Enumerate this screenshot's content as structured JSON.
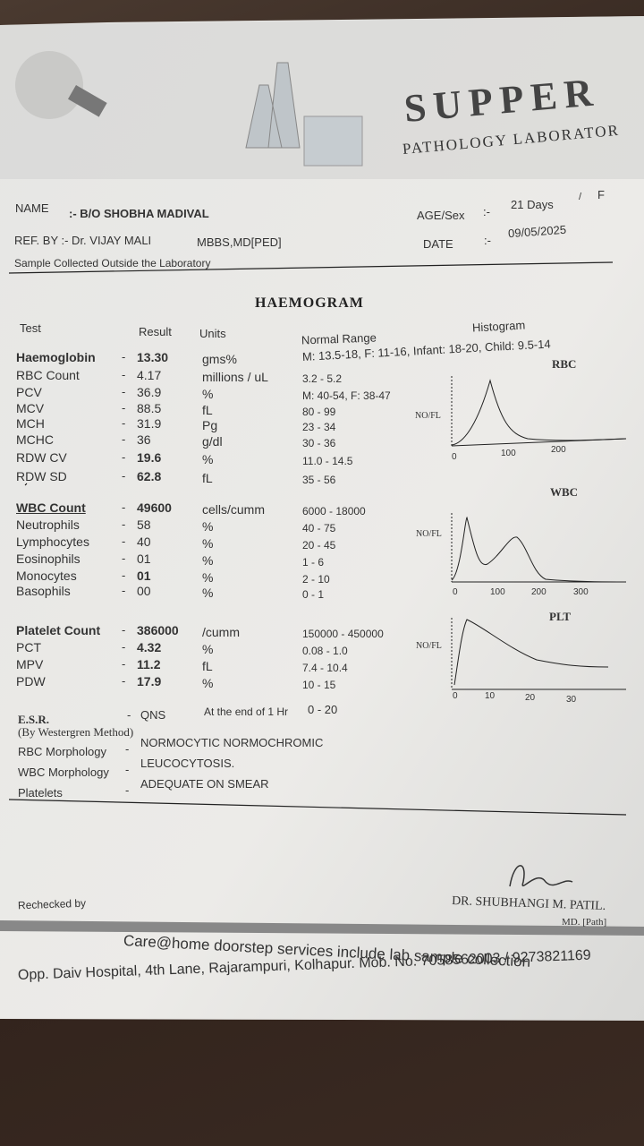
{
  "header": {
    "lab_name": "SUPPER",
    "lab_subtitle": "PATHOLOGY LABORATOR"
  },
  "patient": {
    "name_label": "NAME",
    "name": ":- B/O SHOBHA MADIVAL",
    "age_label": "AGE/Sex",
    "age_sep": ":-",
    "age": "21 Days",
    "age_slash": "/",
    "sex": "F",
    "ref": "REF. BY :- Dr. VIJAY MALI",
    "ref_degree": "MBBS,MD[PED]",
    "date_label": "DATE",
    "date_sep": ":-",
    "date": "09/05/2025",
    "sample_note": "Sample Collected Outside the Laboratory"
  },
  "report": {
    "title": "HAEMOGRAM",
    "columns": {
      "test": "Test",
      "result": "Result",
      "units": "Units",
      "range": "Normal Range",
      "histogram": "Histogram"
    },
    "rows": [
      {
        "test": "Haemoglobin",
        "dash": "-",
        "result": "13.30",
        "unit": "gms%",
        "range": "M: 13.5-18, F: 11-16, Infant: 18-20, Child: 9.5-14"
      },
      {
        "test": "RBC Count",
        "dash": "-",
        "result": "4.17",
        "unit": "millions / uL",
        "range": "3.2 - 5.2"
      },
      {
        "test": "PCV",
        "dash": "-",
        "result": "36.9",
        "unit": "%",
        "range": "M: 40-54, F: 38-47"
      },
      {
        "test": "MCV",
        "dash": "-",
        "result": "88.5",
        "unit": "fL",
        "range": "80 - 99"
      },
      {
        "test": "MCH",
        "dash": "-",
        "result": "31.9",
        "unit": "Pg",
        "range": "23 - 34"
      },
      {
        "test": "MCHC",
        "dash": "-",
        "result": "36",
        "unit": "g/dl",
        "range": "30 - 36"
      },
      {
        "test": "RDW CV",
        "dash": "-",
        "result": "19.6",
        "unit": "%",
        "range": "11.0 - 14.5"
      },
      {
        "test": "RDW SD",
        "dash": "-",
        "result": "62.8",
        "unit": "fL",
        "range": "35 - 56"
      },
      {
        "test": "WBC Count",
        "dash": "-",
        "result": "49600",
        "unit": "cells/cumm",
        "range": "6000 - 18000"
      },
      {
        "test": "Neutrophils",
        "dash": "-",
        "result": "58",
        "unit": "%",
        "range": "40 - 75"
      },
      {
        "test": "Lymphocytes",
        "dash": "-",
        "result": "40",
        "unit": "%",
        "range": "20 - 45"
      },
      {
        "test": "Eosinophils",
        "dash": "-",
        "result": "01",
        "unit": "%",
        "range": "1 - 6"
      },
      {
        "test": "Monocytes",
        "dash": "-",
        "result": "01",
        "unit": "%",
        "range": "2 - 10"
      },
      {
        "test": "Basophils",
        "dash": "-",
        "result": "00",
        "unit": "%",
        "range": "0 - 1"
      },
      {
        "test": "Platelet Count",
        "dash": "-",
        "result": "386000",
        "unit": "/cumm",
        "range": "150000 - 450000"
      },
      {
        "test": "PCT",
        "dash": "-",
        "result": "4.32",
        "unit": "%",
        "range": "0.08 - 1.0"
      },
      {
        "test": "MPV",
        "dash": "-",
        "result": "11.2",
        "unit": "fL",
        "range": "7.4 - 10.4"
      },
      {
        "test": "PDW",
        "dash": "-",
        "result": "17.9",
        "unit": "%",
        "range": "10 - 15"
      }
    ],
    "esr": {
      "test": "E.S.R.",
      "method": "(By Westergren Method)",
      "dash": "-",
      "result": "QNS",
      "unit": "At the end of 1 Hr",
      "range": "0 - 20"
    },
    "morphology": [
      {
        "label": "RBC Morphology",
        "dash": "-",
        "value": "NORMOCYTIC NORMOCHROMIC"
      },
      {
        "label": "WBC Morphology",
        "dash": "-",
        "value": "LEUCOCYTOSIS."
      },
      {
        "label": "Platelets",
        "dash": "-",
        "value": "ADEQUATE ON SMEAR"
      }
    ]
  },
  "histograms": [
    {
      "title": "RBC",
      "ylabel": "NO/FL",
      "ticks": [
        "0",
        "100",
        "200"
      ]
    },
    {
      "title": "WBC",
      "ylabel": "NO/FL",
      "ticks": [
        "0",
        "100",
        "200",
        "300"
      ]
    },
    {
      "title": "PLT",
      "ylabel": "NO/FL",
      "ticks": [
        "0",
        "10",
        "20",
        "30"
      ]
    }
  ],
  "footer": {
    "rechecked": "Rechecked by",
    "doctor": "DR. SHUBHANGI M. PATIL.",
    "degree": "MD. [Path]",
    "services": "Care@home doorstep services include lab sample collection",
    "address": "Opp. Daiv Hospital, 4th Lane, Rajarampuri, Kolhapur. Mob. No. 7058562003 / 9273821169"
  }
}
